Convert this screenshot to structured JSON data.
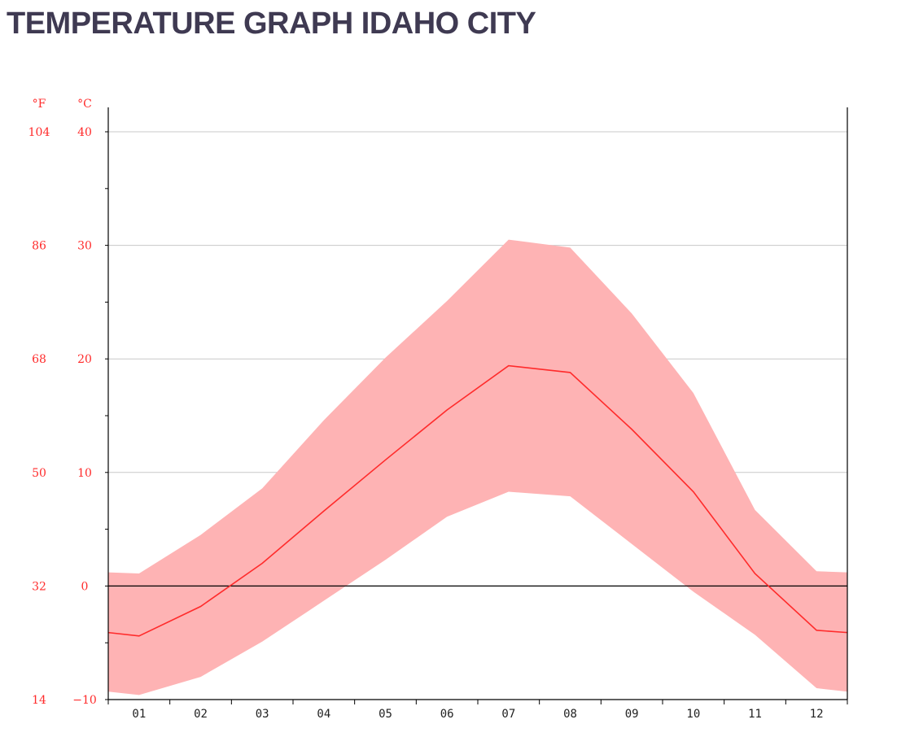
{
  "title": "TEMPERATURE GRAPH IDAHO CITY",
  "chart_data": {
    "type": "area",
    "x": [
      "01",
      "02",
      "03",
      "04",
      "05",
      "06",
      "07",
      "08",
      "09",
      "10",
      "11",
      "12"
    ],
    "series": [
      {
        "role": "range-max",
        "values": [
          1.1,
          4.5,
          8.6,
          14.6,
          20.1,
          25.1,
          30.5,
          29.8,
          24.0,
          17.0,
          6.7,
          1.3
        ]
      },
      {
        "role": "average",
        "values": [
          -4.4,
          -1.8,
          2.0,
          6.6,
          11.1,
          15.5,
          19.4,
          18.8,
          13.8,
          8.3,
          1.1,
          -3.9
        ]
      },
      {
        "role": "range-min",
        "values": [
          -9.6,
          -8.0,
          -4.9,
          -1.3,
          2.3,
          6.1,
          8.3,
          7.9,
          3.7,
          -0.5,
          -4.3,
          -9.0
        ]
      }
    ],
    "edge_values": {
      "left": {
        "max": 1.2,
        "avg": -4.1,
        "min": -9.3
      },
      "right": {
        "max": 1.2,
        "avg": -4.1,
        "min": -9.3
      }
    },
    "y_unit_c": "°C",
    "y_unit_f": "°F",
    "y_ticks_c": [
      "40",
      "30",
      "20",
      "10",
      "0",
      "−10"
    ],
    "y_ticks_f": [
      "104",
      "86",
      "68",
      "50",
      "32",
      "14"
    ],
    "y_tick_values": [
      40,
      30,
      20,
      10,
      0,
      -10
    ],
    "ylim": [
      -10,
      40
    ],
    "grid": true,
    "colors": {
      "band": "#feb3b4",
      "line": "#ff2b2b",
      "labels": "#ff2b2b",
      "zero_line": "#000000",
      "grid": "#c8c8c8",
      "title": "#3f3a52"
    }
  }
}
